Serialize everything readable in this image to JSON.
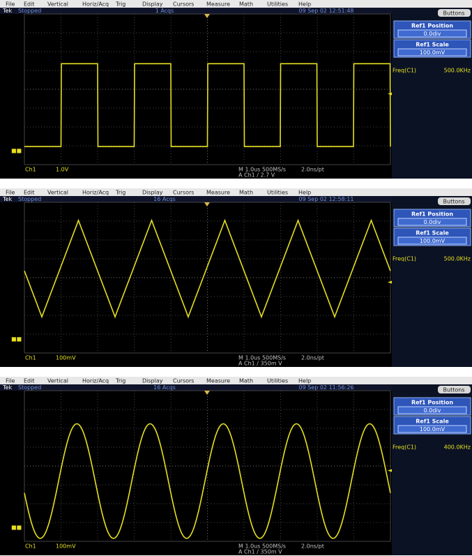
{
  "menu": [
    "File",
    "Edit",
    "Vertical",
    "Horiz/Acq",
    "Trig",
    "Display",
    "Cursors",
    "Measure",
    "Math",
    "Utilities",
    "Help"
  ],
  "panels": [
    {
      "status": {
        "brand": "Tek",
        "state": "Stopped",
        "acqs": "1 Acqs",
        "datetime": "09 Sep 02 12:51:48"
      },
      "buttons_label": "Buttons",
      "ref_position": {
        "label": "Ref1 Position",
        "value": "0.0div"
      },
      "ref_scale": {
        "label": "Ref1 Scale",
        "value": "100.0mV"
      },
      "freq": {
        "label": "Freq(C1)",
        "value": "500.0KHz"
      },
      "channel": "Ch1",
      "volts": "1.0V",
      "timebase": "M 1.0us 500MS/s",
      "trigger": "A  Ch1  /  2.7  V",
      "sample": "2.0ns/pt"
    },
    {
      "status": {
        "brand": "Tek",
        "state": "Stopped",
        "acqs": "16 Acqs",
        "datetime": "09 Sep 02 12:58:11"
      },
      "buttons_label": "Buttons",
      "ref_position": {
        "label": "Ref1 Position",
        "value": "0.0div"
      },
      "ref_scale": {
        "label": "Ref1 Scale",
        "value": "100.0mV"
      },
      "freq": {
        "label": "Freq(C1)",
        "value": "500.0KHz"
      },
      "channel": "Ch1",
      "volts": "100mV",
      "timebase": "M 1.0us 500MS/s",
      "trigger": "A  Ch1  /  350m  V",
      "sample": "2.0ns/pt"
    },
    {
      "status": {
        "brand": "Tek",
        "state": "Stopped",
        "acqs": "16 Acqs",
        "datetime": "09 Sep 02 11:56:26"
      },
      "buttons_label": "Buttons",
      "ref_position": {
        "label": "Ref1 Position",
        "value": "0.0div"
      },
      "ref_scale": {
        "label": "Ref1 Scale",
        "value": "100.0mV"
      },
      "freq": {
        "label": "Freq(C1)",
        "value": "400.0KHz"
      },
      "channel": "Ch1",
      "volts": "100mV",
      "timebase": "M 1.0us 500MS/s",
      "trigger": "A  Ch1  /  350m  V",
      "sample": "2.0ns/pt"
    }
  ]
}
